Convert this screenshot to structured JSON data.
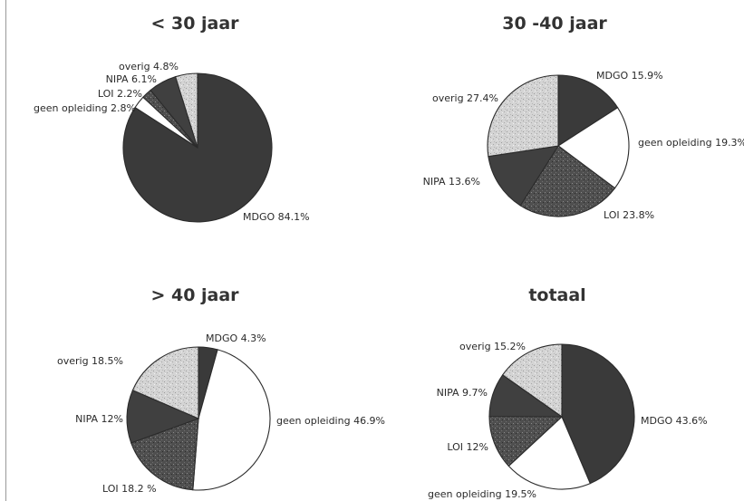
{
  "colors": {
    "MDGO": "#3a3a3a",
    "geen opleiding": "#ffffff",
    "LOI": "#545454",
    "NIPA": "#404040",
    "overig": "#d0d0d0",
    "outline": "#2b2b2b",
    "title": "#333333"
  },
  "chart_data": [
    {
      "type": "pie",
      "title": "< 30 jaar",
      "slices": [
        {
          "category": "MDGO",
          "label": "MDGO 84.1%",
          "value": 84.1
        },
        {
          "category": "geen opleiding",
          "label": "geen opleiding 2.8%",
          "value": 2.8
        },
        {
          "category": "LOI",
          "label": "LOI 2.2%",
          "value": 2.2
        },
        {
          "category": "NIPA",
          "label": "NIPA 6.1%",
          "value": 6.1
        },
        {
          "category": "overig",
          "label": "overig 4.8%",
          "value": 4.8
        }
      ]
    },
    {
      "type": "pie",
      "title": "30 -40 jaar",
      "slices": [
        {
          "category": "MDGO",
          "label": "MDGO 15.9%",
          "value": 15.9
        },
        {
          "category": "geen opleiding",
          "label": "geen opleiding 19.3%",
          "value": 19.3
        },
        {
          "category": "LOI",
          "label": "LOI 23.8%",
          "value": 23.8
        },
        {
          "category": "NIPA",
          "label": "NIPA 13.6%",
          "value": 13.6
        },
        {
          "category": "overig",
          "label": "overig 27.4%",
          "value": 27.4
        }
      ]
    },
    {
      "type": "pie",
      "title": "> 40 jaar",
      "slices": [
        {
          "category": "MDGO",
          "label": "MDGO 4.3%",
          "value": 4.3
        },
        {
          "category": "geen opleiding",
          "label": "geen opleiding 46.9%",
          "value": 46.9
        },
        {
          "category": "LOI",
          "label": "LOI 18.2 %",
          "value": 18.2
        },
        {
          "category": "NIPA",
          "label": "NIPA 12%",
          "value": 12
        },
        {
          "category": "overig",
          "label": "overig 18.5%",
          "value": 18.5
        }
      ]
    },
    {
      "type": "pie",
      "title": "totaal",
      "slices": [
        {
          "category": "MDGO",
          "label": "MDGO 43.6%",
          "value": 43.6
        },
        {
          "category": "geen opleiding",
          "label": "geen opleiding 19.5%",
          "value": 19.5
        },
        {
          "category": "LOI",
          "label": "LOI 12%",
          "value": 12
        },
        {
          "category": "NIPA",
          "label": "NIPA 9.7%",
          "value": 9.7
        },
        {
          "category": "overig",
          "label": "overig 15.2%",
          "value": 15.2
        }
      ]
    }
  ]
}
